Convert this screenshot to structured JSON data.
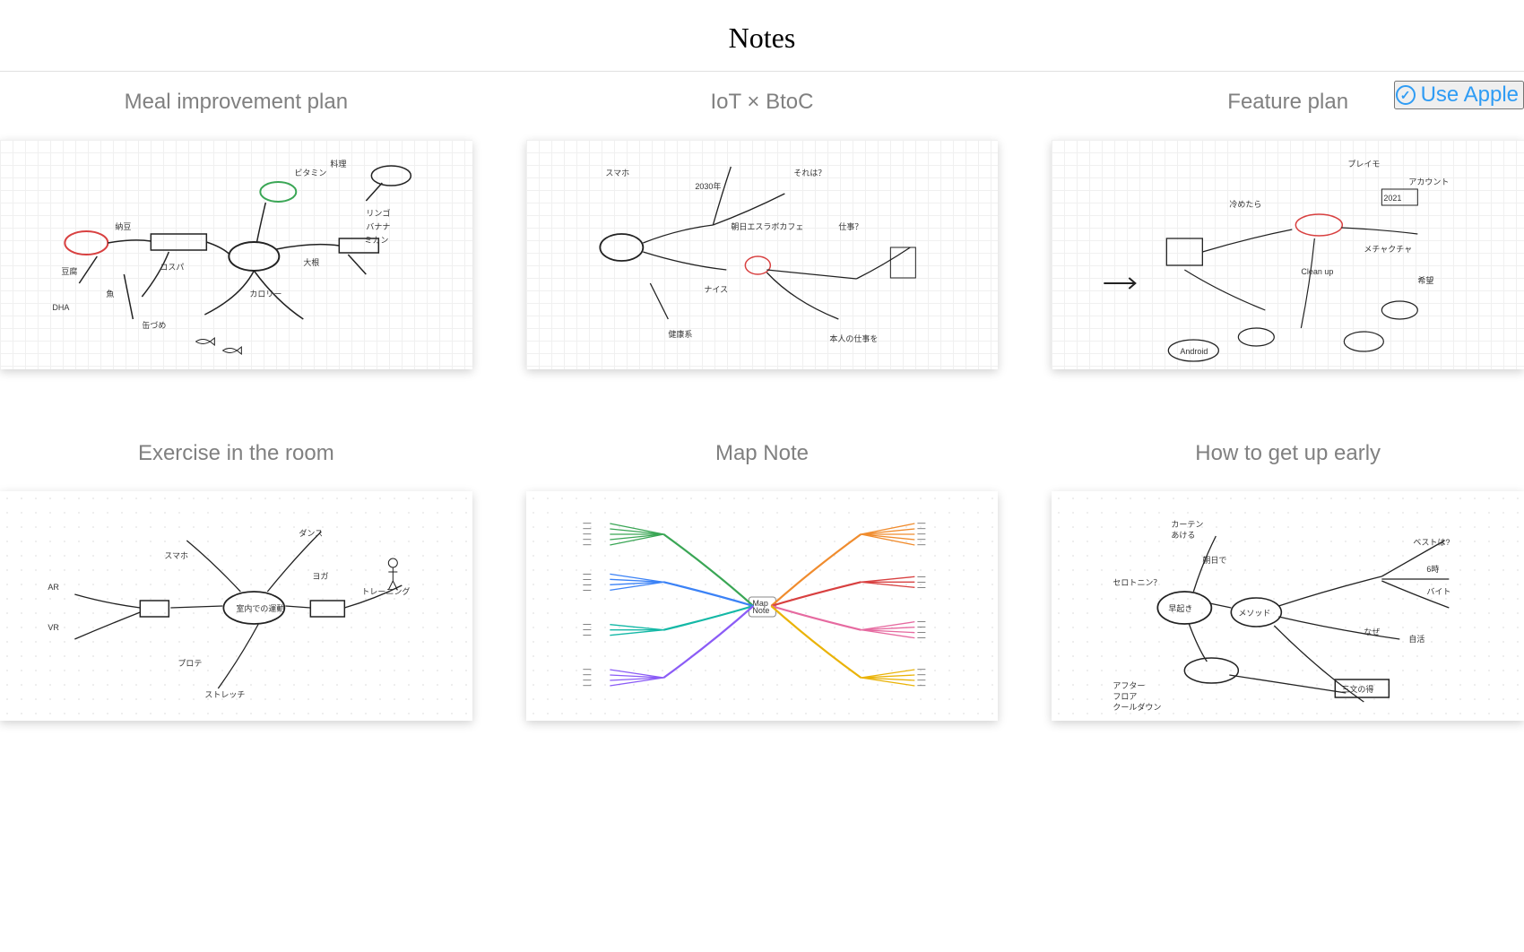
{
  "header": {
    "title": "Notes"
  },
  "actions": {
    "use_apple_label": "Use Apple"
  },
  "notes": [
    {
      "id": "meal",
      "title": "Meal improvement plan",
      "bg": "grid-bg"
    },
    {
      "id": "iot",
      "title": "IoT × BtoC",
      "bg": "grid-bg"
    },
    {
      "id": "feature",
      "title": "Feature plan",
      "bg": "grid-bg"
    },
    {
      "id": "exercise",
      "title": "Exercise in the room",
      "bg": "dot-bg"
    },
    {
      "id": "mapnote",
      "title": "Map Note",
      "bg": "dot-bg"
    },
    {
      "id": "getup",
      "title": "How to get up early",
      "bg": "dot-bg"
    }
  ],
  "colors": {
    "accent": "#2f9cf4",
    "title_gray": "#808080",
    "border": "#e0e0e0",
    "shadow": "rgba(0,0,0,0.18)",
    "ink": "#222222",
    "red": "#d84040",
    "green": "#3aa655",
    "pink": "#e66aa0",
    "orange": "#f08c2e",
    "blue": "#3b82f6",
    "purple": "#8b5cf6",
    "teal": "#14b8a6",
    "yellow": "#eab308"
  },
  "mapnote_branches": [
    {
      "color": "#3aa655",
      "side": "left",
      "count": 5
    },
    {
      "color": "#3b82f6",
      "side": "left",
      "count": 4
    },
    {
      "color": "#14b8a6",
      "side": "left",
      "count": 3
    },
    {
      "color": "#8b5cf6",
      "side": "left",
      "count": 4
    },
    {
      "color": "#f08c2e",
      "side": "right",
      "count": 5
    },
    {
      "color": "#d84040",
      "side": "right",
      "count": 3
    },
    {
      "color": "#e66aa0",
      "side": "right",
      "count": 4
    },
    {
      "color": "#eab308",
      "side": "right",
      "count": 4
    }
  ]
}
